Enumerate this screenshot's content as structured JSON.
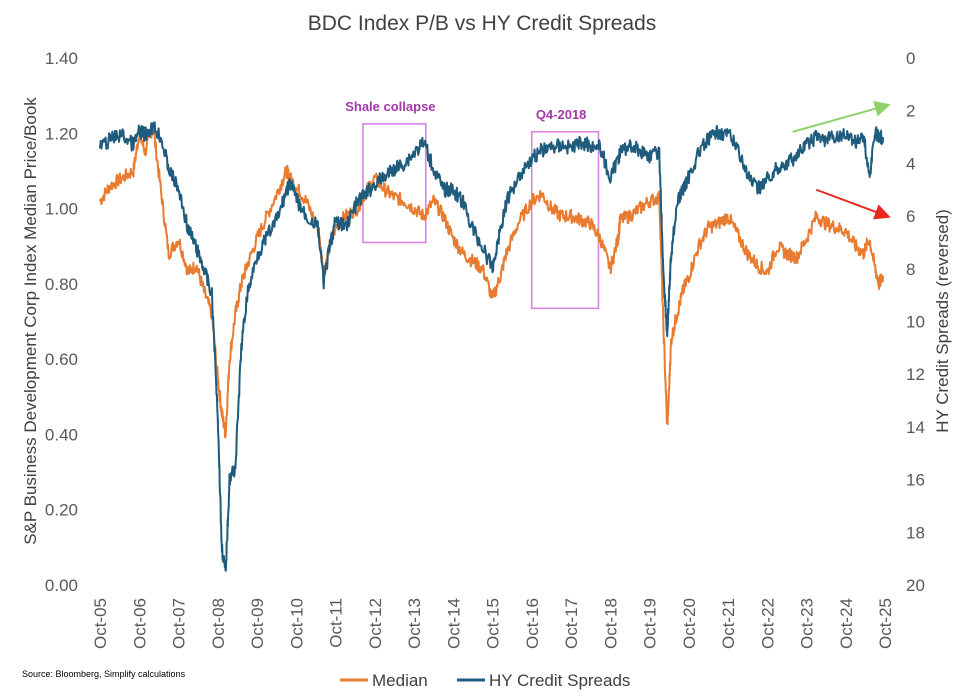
{
  "chart_data": {
    "type": "line",
    "title": "BDC Index P/B vs HY Credit Spreads",
    "ylabel": "S&P Business Development Corp Index Median Price/Book",
    "y2label": "HY Credit Spreads (reversed)",
    "ylim": [
      0,
      1.4
    ],
    "y2lim": [
      0,
      20
    ],
    "y2_reversed": true,
    "y_ticks": [
      "0.00",
      "0.20",
      "0.40",
      "0.60",
      "0.80",
      "1.00",
      "1.20",
      "1.40"
    ],
    "y2_ticks": [
      "0",
      "2",
      "4",
      "6",
      "8",
      "10",
      "12",
      "14",
      "16",
      "18",
      "20"
    ],
    "x_ticks": [
      "Oct-05",
      "Oct-06",
      "Oct-07",
      "Oct-08",
      "Oct-09",
      "Oct-10",
      "Oct-11",
      "Oct-12",
      "Oct-13",
      "Oct-14",
      "Oct-15",
      "Oct-16",
      "Oct-17",
      "Oct-18",
      "Oct-19",
      "Oct-20",
      "Oct-21",
      "Oct-22",
      "Oct-23",
      "Oct-24",
      "Oct-25"
    ],
    "xlim": [
      2005.75,
      2025.75
    ],
    "series": [
      {
        "name": "Median",
        "axis": "left",
        "color": "#e97b30",
        "x": [
          2005.75,
          2006.0,
          2006.3,
          2006.6,
          2006.75,
          2006.9,
          2007.1,
          2007.3,
          2007.5,
          2007.75,
          2008.0,
          2008.2,
          2008.4,
          2008.6,
          2008.75,
          2008.85,
          2008.95,
          2009.05,
          2009.2,
          2009.35,
          2009.5,
          2009.75,
          2010.0,
          2010.3,
          2010.5,
          2010.6,
          2010.8,
          2011.0,
          2011.3,
          2011.45,
          2011.6,
          2011.75,
          2012.0,
          2012.3,
          2012.5,
          2012.75,
          2013.0,
          2013.25,
          2013.5,
          2013.75,
          2014.0,
          2014.25,
          2014.5,
          2014.75,
          2015.0,
          2015.25,
          2015.5,
          2015.75,
          2015.95,
          2016.1,
          2016.4,
          2016.75,
          2017.0,
          2017.25,
          2017.5,
          2017.75,
          2018.0,
          2018.25,
          2018.5,
          2018.75,
          2018.95,
          2019.0,
          2019.25,
          2019.5,
          2019.75,
          2020.0,
          2020.1,
          2020.2,
          2020.25,
          2020.3,
          2020.45,
          2020.6,
          2020.75,
          2021.0,
          2021.25,
          2021.5,
          2021.75,
          2022.0,
          2022.25,
          2022.5,
          2022.75,
          2023.0,
          2023.25,
          2023.5,
          2023.75,
          2024.0,
          2024.25,
          2024.5,
          2024.75,
          2025.0,
          2025.2,
          2025.35,
          2025.5,
          2025.6,
          2025.7
        ],
        "values": [
          1.02,
          1.06,
          1.08,
          1.1,
          1.2,
          1.15,
          1.22,
          1.05,
          0.88,
          0.92,
          0.83,
          0.85,
          0.78,
          0.72,
          0.55,
          0.46,
          0.4,
          0.6,
          0.72,
          0.8,
          0.85,
          0.92,
          0.98,
          1.05,
          1.1,
          1.08,
          1.05,
          1.02,
          0.95,
          0.83,
          0.9,
          0.95,
          0.98,
          1.0,
          1.04,
          1.08,
          1.05,
          1.03,
          1.02,
          1.0,
          0.98,
          1.02,
          0.98,
          0.92,
          0.88,
          0.86,
          0.84,
          0.76,
          0.82,
          0.88,
          0.96,
          1.02,
          1.04,
          1.0,
          0.98,
          0.98,
          0.97,
          0.96,
          0.92,
          0.84,
          0.92,
          0.97,
          0.98,
          1.0,
          1.02,
          1.03,
          0.7,
          0.42,
          0.52,
          0.65,
          0.72,
          0.78,
          0.82,
          0.9,
          0.95,
          0.96,
          0.98,
          0.93,
          0.88,
          0.85,
          0.83,
          0.9,
          0.88,
          0.87,
          0.92,
          0.98,
          0.96,
          0.95,
          0.94,
          0.9,
          0.88,
          0.92,
          0.84,
          0.8,
          0.82
        ]
      },
      {
        "name": "HY Credit Spreads",
        "axis": "right",
        "color": "#1e5b7d",
        "x": [
          2005.75,
          2006.0,
          2006.3,
          2006.6,
          2006.75,
          2006.9,
          2007.1,
          2007.3,
          2007.5,
          2007.75,
          2008.0,
          2008.2,
          2008.4,
          2008.6,
          2008.75,
          2008.85,
          2008.95,
          2009.05,
          2009.2,
          2009.35,
          2009.5,
          2009.75,
          2010.0,
          2010.3,
          2010.5,
          2010.6,
          2010.8,
          2011.0,
          2011.3,
          2011.45,
          2011.6,
          2011.75,
          2012.0,
          2012.3,
          2012.5,
          2012.75,
          2013.0,
          2013.25,
          2013.5,
          2013.75,
          2014.0,
          2014.25,
          2014.5,
          2014.75,
          2015.0,
          2015.25,
          2015.5,
          2015.75,
          2015.95,
          2016.1,
          2016.4,
          2016.75,
          2017.0,
          2017.25,
          2017.5,
          2017.75,
          2018.0,
          2018.25,
          2018.5,
          2018.75,
          2018.95,
          2019.0,
          2019.25,
          2019.5,
          2019.75,
          2020.0,
          2020.1,
          2020.2,
          2020.25,
          2020.3,
          2020.45,
          2020.6,
          2020.75,
          2021.0,
          2021.25,
          2021.5,
          2021.75,
          2022.0,
          2022.25,
          2022.5,
          2022.75,
          2023.0,
          2023.25,
          2023.5,
          2023.75,
          2024.0,
          2024.25,
          2024.5,
          2024.75,
          2025.0,
          2025.2,
          2025.35,
          2025.5,
          2025.6,
          2025.7
        ],
        "values": [
          3.4,
          3.1,
          2.9,
          3.3,
          2.8,
          2.9,
          2.6,
          3.0,
          4.2,
          5.0,
          6.5,
          7.2,
          8.0,
          9.0,
          13.5,
          18.5,
          19.6,
          16.0,
          15.5,
          11.0,
          9.0,
          7.5,
          6.8,
          6.0,
          5.0,
          4.8,
          5.5,
          6.0,
          6.4,
          8.5,
          7.2,
          6.2,
          6.4,
          5.5,
          5.2,
          4.8,
          4.5,
          4.2,
          4.0,
          3.6,
          3.2,
          4.2,
          5.0,
          5.0,
          5.5,
          6.5,
          7.2,
          8.0,
          6.5,
          5.5,
          4.5,
          3.8,
          3.5,
          3.4,
          3.3,
          3.4,
          3.2,
          3.3,
          3.4,
          4.6,
          3.8,
          3.6,
          3.3,
          3.5,
          3.7,
          3.6,
          8.0,
          10.5,
          9.0,
          7.5,
          5.5,
          5.0,
          4.5,
          3.6,
          3.1,
          2.8,
          2.9,
          3.4,
          4.5,
          5.0,
          4.6,
          4.2,
          4.0,
          3.7,
          3.3,
          3.0,
          3.1,
          3.0,
          2.9,
          3.2,
          2.9,
          4.5,
          2.8,
          3.0,
          3.0
        ]
      }
    ],
    "annotations": [
      {
        "text": "Shale collapse",
        "x_range": [
          2012.45,
          2014.05
        ],
        "y2_range": [
          2.5,
          7.0
        ]
      },
      {
        "text": "Q4-2018",
        "x_range": [
          2016.75,
          2018.45
        ],
        "y2_range": [
          2.8,
          9.5
        ]
      }
    ],
    "trend_arrows": [
      {
        "name": "HY spreads trend",
        "color": "#8fd16a",
        "from": [
          2023.4,
          2.8
        ],
        "to": [
          2025.8,
          1.8
        ]
      },
      {
        "name": "BDC P/B trend",
        "color": "#e8281e",
        "from": [
          2024.0,
          1.05
        ],
        "to": [
          2025.8,
          0.98
        ]
      }
    ],
    "legend": {
      "placement": "bottom",
      "entries": [
        "Median",
        "HY Credit Spreads"
      ]
    },
    "source": "Source: Bloomberg, Simplify calculations"
  }
}
